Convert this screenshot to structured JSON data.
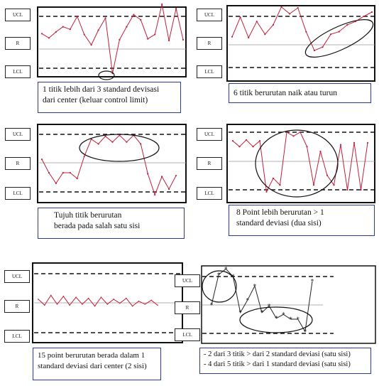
{
  "labels": {
    "ucl": "UCL",
    "r": "R",
    "lcl": "LCL"
  },
  "captions": {
    "p1": {
      "line1": "1 titik lebih dari 3 standard devisasi",
      "line2": "dari center (keluar control limit)"
    },
    "p2": {
      "line1": "6 titik berurutan naik atau turun"
    },
    "p3": {
      "line1": "Tujuh titik berurutan",
      "line2": "berada pada salah satu sisi"
    },
    "p4": {
      "line1": "8 Point lebih berurutan > 1",
      "line2": "standard deviasi (dua sisi)"
    },
    "p5": {
      "line1": "15 point berurutan berada dalam 1",
      "line2": "standard deviasi dari center (2 sisi)"
    },
    "p6": {
      "line1": "- 2 dari 3 titik > dari 2 standard deviasi (satu sisi)",
      "line2": "- 4 dari 5 titik > dari 1 standard deviasi (satu sisi)"
    }
  },
  "colors": {
    "series": "#c0203a",
    "marker": "#222222",
    "caption_border": "#2b3a8c"
  },
  "chart_data": [
    {
      "type": "line",
      "values": [
        1.0,
        0.5,
        1.2,
        1.8,
        1.5,
        3.0,
        0.9,
        -0.3,
        1.4,
        2.8,
        -3.6,
        0.3,
        1.8,
        3.2,
        2.6,
        0.4,
        0.9,
        4.4,
        0.2,
        3.9,
        0.3
      ],
      "ylim": [
        -4,
        5
      ]
    },
    {
      "type": "line",
      "values": [
        0.6,
        2.9,
        0.5,
        2.4,
        0.9,
        2.0,
        4.1,
        3.3,
        4.0,
        1.2,
        -1.0,
        -0.6,
        0.9,
        1.2,
        2.0,
        2.4,
        3.0,
        3.5
      ],
      "ylim": [
        -4,
        5
      ]
    },
    {
      "type": "line",
      "values": [
        0.4,
        -1.0,
        -2.1,
        -1.0,
        -1.0,
        -1.6,
        0.7,
        2.5,
        2.0,
        2.8,
        2.2,
        2.9,
        2.2,
        2.9,
        2.0,
        -1.1,
        -3.3,
        -1.4,
        -2.7,
        -1.3
      ],
      "ylim": [
        -4,
        5
      ]
    },
    {
      "type": "line",
      "values": [
        2.1,
        1.5,
        2.2,
        1.5,
        2.1,
        -3.2,
        -1.8,
        -2.5,
        3.0,
        2.6,
        3.0,
        1.5,
        -2.5,
        1.0,
        -1.5,
        -2.5,
        1.7,
        -3.0,
        1.9,
        -3.0,
        1.9
      ],
      "ylim": [
        -4,
        5
      ]
    },
    {
      "type": "line",
      "values": [
        0.4,
        -0.2,
        0.8,
        -0.1,
        0.7,
        -0.2,
        0.6,
        -0.1,
        0.5,
        -0.3,
        0.6,
        -0.1,
        0.4,
        0.0,
        0.5,
        -0.3,
        0.2,
        -0.1,
        0.3,
        -0.2
      ],
      "ylim": [
        -4,
        5
      ]
    },
    {
      "type": "line",
      "values": [
        0.0,
        3.2,
        3.8,
        3.0,
        -0.8,
        0.5,
        2.0,
        -0.8,
        -0.1,
        -1.4,
        -1.0,
        -1.5,
        -1.5,
        -2.8,
        2.5
      ],
      "ylim": [
        -4,
        5
      ]
    }
  ]
}
